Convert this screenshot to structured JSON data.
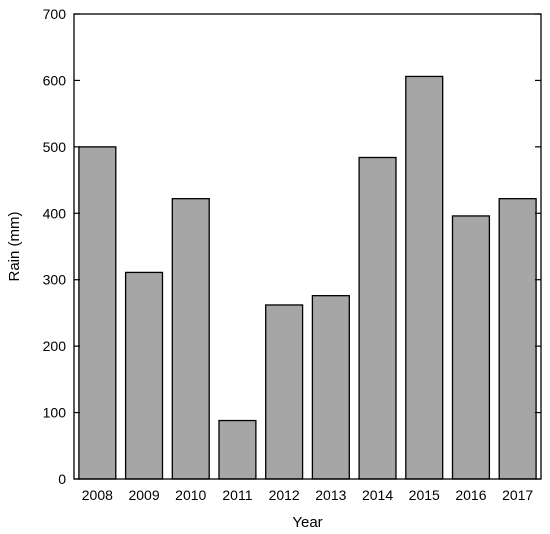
{
  "chart_data": {
    "type": "bar",
    "title": "",
    "xlabel": "Year",
    "ylabel": "Rain (mm)",
    "categories": [
      "2008",
      "2009",
      "2010",
      "2011",
      "2012",
      "2013",
      "2014",
      "2015",
      "2016",
      "2017"
    ],
    "values": [
      500,
      311,
      422,
      88,
      262,
      276,
      484,
      606,
      396,
      422
    ],
    "ylim": [
      0,
      700
    ],
    "yticks": [
      0,
      100,
      200,
      300,
      400,
      500,
      600,
      700
    ],
    "grid": false,
    "legend": "none",
    "bar_color": "#a6a6a6"
  }
}
